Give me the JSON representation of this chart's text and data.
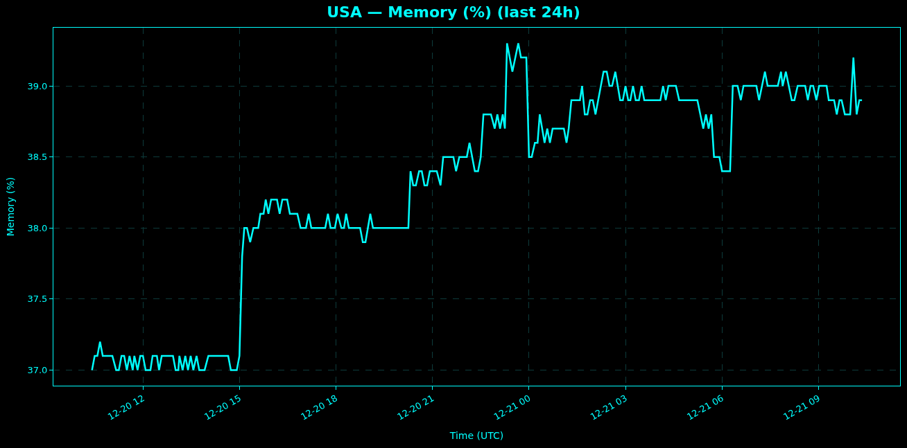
{
  "chart_data": {
    "type": "line",
    "title": "USA — Memory (%) (last 24h)",
    "xlabel": "Time (UTC)",
    "ylabel": "Memory (%)",
    "x": [
      "--12-20T10:25",
      "--12-20T10:30",
      "--12-20T10:35",
      "--12-20T10:40",
      "--12-20T10:45",
      "--12-20T11:03",
      "--12-20T11:10",
      "--12-20T11:15",
      "--12-20T11:20",
      "--12-20T11:25",
      "--12-20T11:30",
      "--12-20T11:35",
      "--12-20T11:41",
      "--12-20T11:44",
      "--12-20T11:50",
      "--12-20T11:55",
      "--12-20T12:00",
      "--12-20T12:05",
      "--12-20T12:14",
      "--12-20T12:18",
      "--12-20T12:26",
      "--12-20T12:30",
      "--12-20T12:35",
      "--12-20T12:56",
      "--12-20T13:01",
      "--12-20T13:06",
      "--12-20T13:08",
      "--12-20T13:14",
      "--12-20T13:19",
      "--12-20T13:24",
      "--12-20T13:29",
      "--12-20T13:34",
      "--12-20T13:40",
      "--12-20T13:45",
      "--12-20T13:55",
      "--12-20T14:02",
      "--12-20T14:39",
      "--12-20T14:44",
      "--12-20T14:55",
      "--12-20T15:00",
      "--12-20T15:05",
      "--12-20T15:09",
      "--12-20T15:14",
      "--12-20T15:20",
      "--12-20T15:26",
      "--12-20T15:35",
      "--12-20T15:39",
      "--12-20T15:45",
      "--12-20T15:49",
      "--12-20T15:54",
      "--12-20T15:59",
      "--12-20T16:10",
      "--12-20T16:15",
      "--12-20T16:20",
      "--12-20T16:29",
      "--12-20T16:34",
      "--12-20T16:48",
      "--12-20T16:54",
      "--12-20T17:04",
      "--12-20T17:09",
      "--12-20T17:14",
      "--12-20T17:40",
      "--12-20T17:45",
      "--12-20T17:50",
      "--12-20T17:58",
      "--12-20T18:03",
      "--12-20T18:10",
      "--12-20T18:15",
      "--12-20T18:19",
      "--12-20T18:24",
      "--12-20T18:45",
      "--12-20T18:50",
      "--12-20T18:55",
      "--12-20T19:04",
      "--12-20T19:09",
      "--12-20T20:15",
      "--12-20T20:19",
      "--12-20T20:24",
      "--12-20T20:29",
      "--12-20T20:35",
      "--12-20T20:40",
      "--12-20T20:45",
      "--12-20T20:50",
      "--12-20T20:55",
      "--12-20T21:08",
      "--12-20T21:15",
      "--12-20T21:20",
      "--12-20T21:39",
      "--12-20T21:44",
      "--12-20T21:50",
      "--12-20T22:04",
      "--12-20T22:09",
      "--12-20T22:19",
      "--12-20T22:25",
      "--12-20T22:30",
      "--12-20T22:35",
      "--12-20T22:49",
      "--12-20T22:56",
      "--12-20T23:01",
      "--12-20T23:06",
      "--12-20T23:11",
      "--12-20T23:15",
      "--12-20T23:19",
      "--12-20T23:29",
      "--12-20T23:40",
      "--12-20T23:45",
      "--12-20T23:55",
      "--12-21T00:00",
      "--12-21T00:05",
      "--12-21T00:11",
      "--12-21T00:16",
      "--12-21T00:20",
      "--12-21T00:29",
      "--12-21T00:34",
      "--12-21T00:39",
      "--12-21T00:44",
      "--12-21T01:05",
      "--12-21T01:10",
      "--12-21T01:14",
      "--12-21T01:19",
      "--12-21T01:35",
      "--12-21T01:39",
      "--12-21T01:44",
      "--12-21T01:49",
      "--12-21T01:54",
      "--12-21T01:59",
      "--12-21T02:04",
      "--12-21T02:19",
      "--12-21T02:25",
      "--12-21T02:30",
      "--12-21T02:35",
      "--12-21T02:41",
      "--12-21T02:50",
      "--12-21T02:55",
      "--12-21T03:00",
      "--12-21T03:05",
      "--12-21T03:09",
      "--12-21T03:14",
      "--12-21T03:19",
      "--12-21T03:25",
      "--12-21T03:30",
      "--12-21T03:35",
      "--12-21T04:05",
      "--12-21T04:10",
      "--12-21T04:15",
      "--12-21T04:20",
      "--12-21T04:34",
      "--12-21T04:40",
      "--12-21T05:14",
      "--12-21T05:25",
      "--12-21T05:30",
      "--12-21T05:35",
      "--12-21T05:40",
      "--12-21T05:45",
      "--12-21T05:55",
      "--12-21T06:00",
      "--12-21T06:15",
      "--12-21T06:20",
      "--12-21T06:29",
      "--12-21T06:35",
      "--12-21T06:40",
      "--12-21T07:04",
      "--12-21T07:09",
      "--12-21T07:20",
      "--12-21T07:25",
      "--12-21T07:44",
      "--12-21T07:50",
      "--12-21T07:53",
      "--12-21T07:59",
      "--12-21T08:10",
      "--12-21T08:15",
      "--12-21T08:21",
      "--12-21T08:35",
      "--12-21T08:40",
      "--12-21T08:45",
      "--12-21T08:50",
      "--12-21T08:56",
      "--12-21T09:01",
      "--12-21T09:15",
      "--12-21T09:19",
      "--12-21T09:29",
      "--12-21T09:34",
      "--12-21T09:39",
      "--12-21T09:43",
      "--12-21T09:49",
      "--12-21T09:59",
      "--12-21T10:05",
      "--12-21T10:11",
      "--12-21T10:16",
      "--12-21T10:21"
    ],
    "series": [
      {
        "color": "#00ffff",
        "values": [
          37.0,
          37.1,
          37.1,
          37.2,
          37.1,
          37.1,
          37.0,
          37.0,
          37.1,
          37.1,
          37.0,
          37.1,
          37.0,
          37.1,
          37.0,
          37.1,
          37.1,
          37.0,
          37.0,
          37.1,
          37.1,
          37.0,
          37.1,
          37.1,
          37.0,
          37.0,
          37.1,
          37.0,
          37.1,
          37.0,
          37.1,
          37.0,
          37.1,
          37.0,
          37.0,
          37.1,
          37.1,
          37.0,
          37.0,
          37.1,
          37.8,
          38.0,
          38.0,
          37.9,
          38.0,
          38.0,
          38.1,
          38.1,
          38.2,
          38.1,
          38.2,
          38.2,
          38.1,
          38.2,
          38.2,
          38.1,
          38.1,
          38.0,
          38.0,
          38.1,
          38.0,
          38.0,
          38.1,
          38.0,
          38.0,
          38.1,
          38.0,
          38.0,
          38.1,
          38.0,
          38.0,
          37.9,
          37.9,
          38.1,
          38.0,
          38.0,
          38.4,
          38.3,
          38.3,
          38.4,
          38.4,
          38.3,
          38.3,
          38.4,
          38.4,
          38.3,
          38.5,
          38.5,
          38.4,
          38.5,
          38.5,
          38.6,
          38.4,
          38.4,
          38.5,
          38.8,
          38.8,
          38.7,
          38.8,
          38.7,
          38.8,
          38.7,
          39.3,
          39.1,
          39.3,
          39.2,
          39.2,
          38.5,
          38.5,
          38.6,
          38.6,
          38.8,
          38.6,
          38.7,
          38.6,
          38.7,
          38.7,
          38.6,
          38.7,
          38.9,
          38.9,
          39.0,
          38.8,
          38.8,
          38.9,
          38.9,
          38.8,
          39.1,
          39.1,
          39.0,
          39.0,
          39.1,
          38.9,
          38.9,
          39.0,
          38.9,
          38.9,
          39.0,
          38.9,
          38.9,
          39.0,
          38.9,
          38.9,
          39.0,
          38.9,
          39.0,
          39.0,
          38.9,
          38.9,
          38.7,
          38.8,
          38.7,
          38.8,
          38.5,
          38.5,
          38.4,
          38.4,
          39.0,
          39.0,
          38.9,
          39.0,
          39.0,
          38.9,
          39.1,
          39.0,
          39.0,
          39.1,
          39.0,
          39.1,
          38.9,
          38.9,
          39.0,
          39.0,
          38.9,
          39.0,
          39.0,
          38.9,
          39.0,
          39.0,
          38.9,
          38.9,
          38.8,
          38.9,
          38.9,
          38.8,
          38.8,
          39.2,
          38.8,
          38.9,
          38.9
        ]
      }
    ],
    "xlim": [
      "--12-20T09:13",
      "--12-21T11:32"
    ],
    "xticks": [
      {
        "value": "--12-20T12:00",
        "label": "12-20 12"
      },
      {
        "value": "--12-20T15:00",
        "label": "12-20 15"
      },
      {
        "value": "--12-20T18:00",
        "label": "12-20 18"
      },
      {
        "value": "--12-20T21:00",
        "label": "12-20 21"
      },
      {
        "value": "--12-21T00:00",
        "label": "12-21 00"
      },
      {
        "value": "--12-21T03:00",
        "label": "12-21 03"
      },
      {
        "value": "--12-21T06:00",
        "label": "12-21 06"
      },
      {
        "value": "--12-21T09:00",
        "label": "12-21 09"
      }
    ],
    "ylim": [
      36.89,
      39.41
    ],
    "yticks": [
      {
        "value": 37,
        "label": "37.0"
      },
      {
        "value": 37.5,
        "label": "37.5"
      },
      {
        "value": 38,
        "label": "38.0"
      },
      {
        "value": 38.5,
        "label": "38.5"
      },
      {
        "value": 39,
        "label": "39.0"
      }
    ],
    "grid": true,
    "marker": "none",
    "line_style": "solid"
  }
}
